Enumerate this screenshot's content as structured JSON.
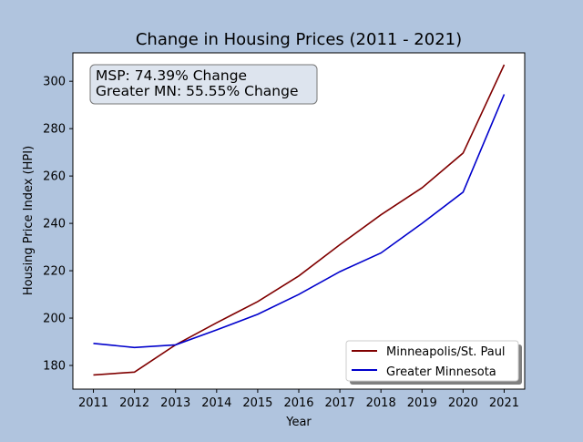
{
  "chart_data": {
    "type": "line",
    "title": "Change in Housing Prices (2011 - 2021)",
    "xlabel": "Year",
    "ylabel": "Housing Price Index (HPI)",
    "x": [
      2011,
      2012,
      2013,
      2014,
      2015,
      2016,
      2017,
      2018,
      2019,
      2020,
      2021
    ],
    "xlim": [
      2010.5,
      2021.5
    ],
    "ylim": [
      170,
      312
    ],
    "yticks": [
      180,
      200,
      220,
      240,
      260,
      280,
      300
    ],
    "grid": false,
    "legend_position": "lower-right",
    "annotation": {
      "lines": [
        "MSP: 74.39% Change",
        "Greater MN: 55.55% Change"
      ],
      "position": "top-left"
    },
    "series": [
      {
        "name": "Minneapolis/St. Paul",
        "color": "#800000",
        "values": [
          176.0,
          177.2,
          188.7,
          198.0,
          207.0,
          217.8,
          231.0,
          243.6,
          255.0,
          269.7,
          307.0
        ]
      },
      {
        "name": "Greater Minnesota",
        "color": "#0000cc",
        "values": [
          189.3,
          187.6,
          188.7,
          195.0,
          201.6,
          210.0,
          219.6,
          227.5,
          240.0,
          253.2,
          294.5
        ]
      }
    ]
  }
}
